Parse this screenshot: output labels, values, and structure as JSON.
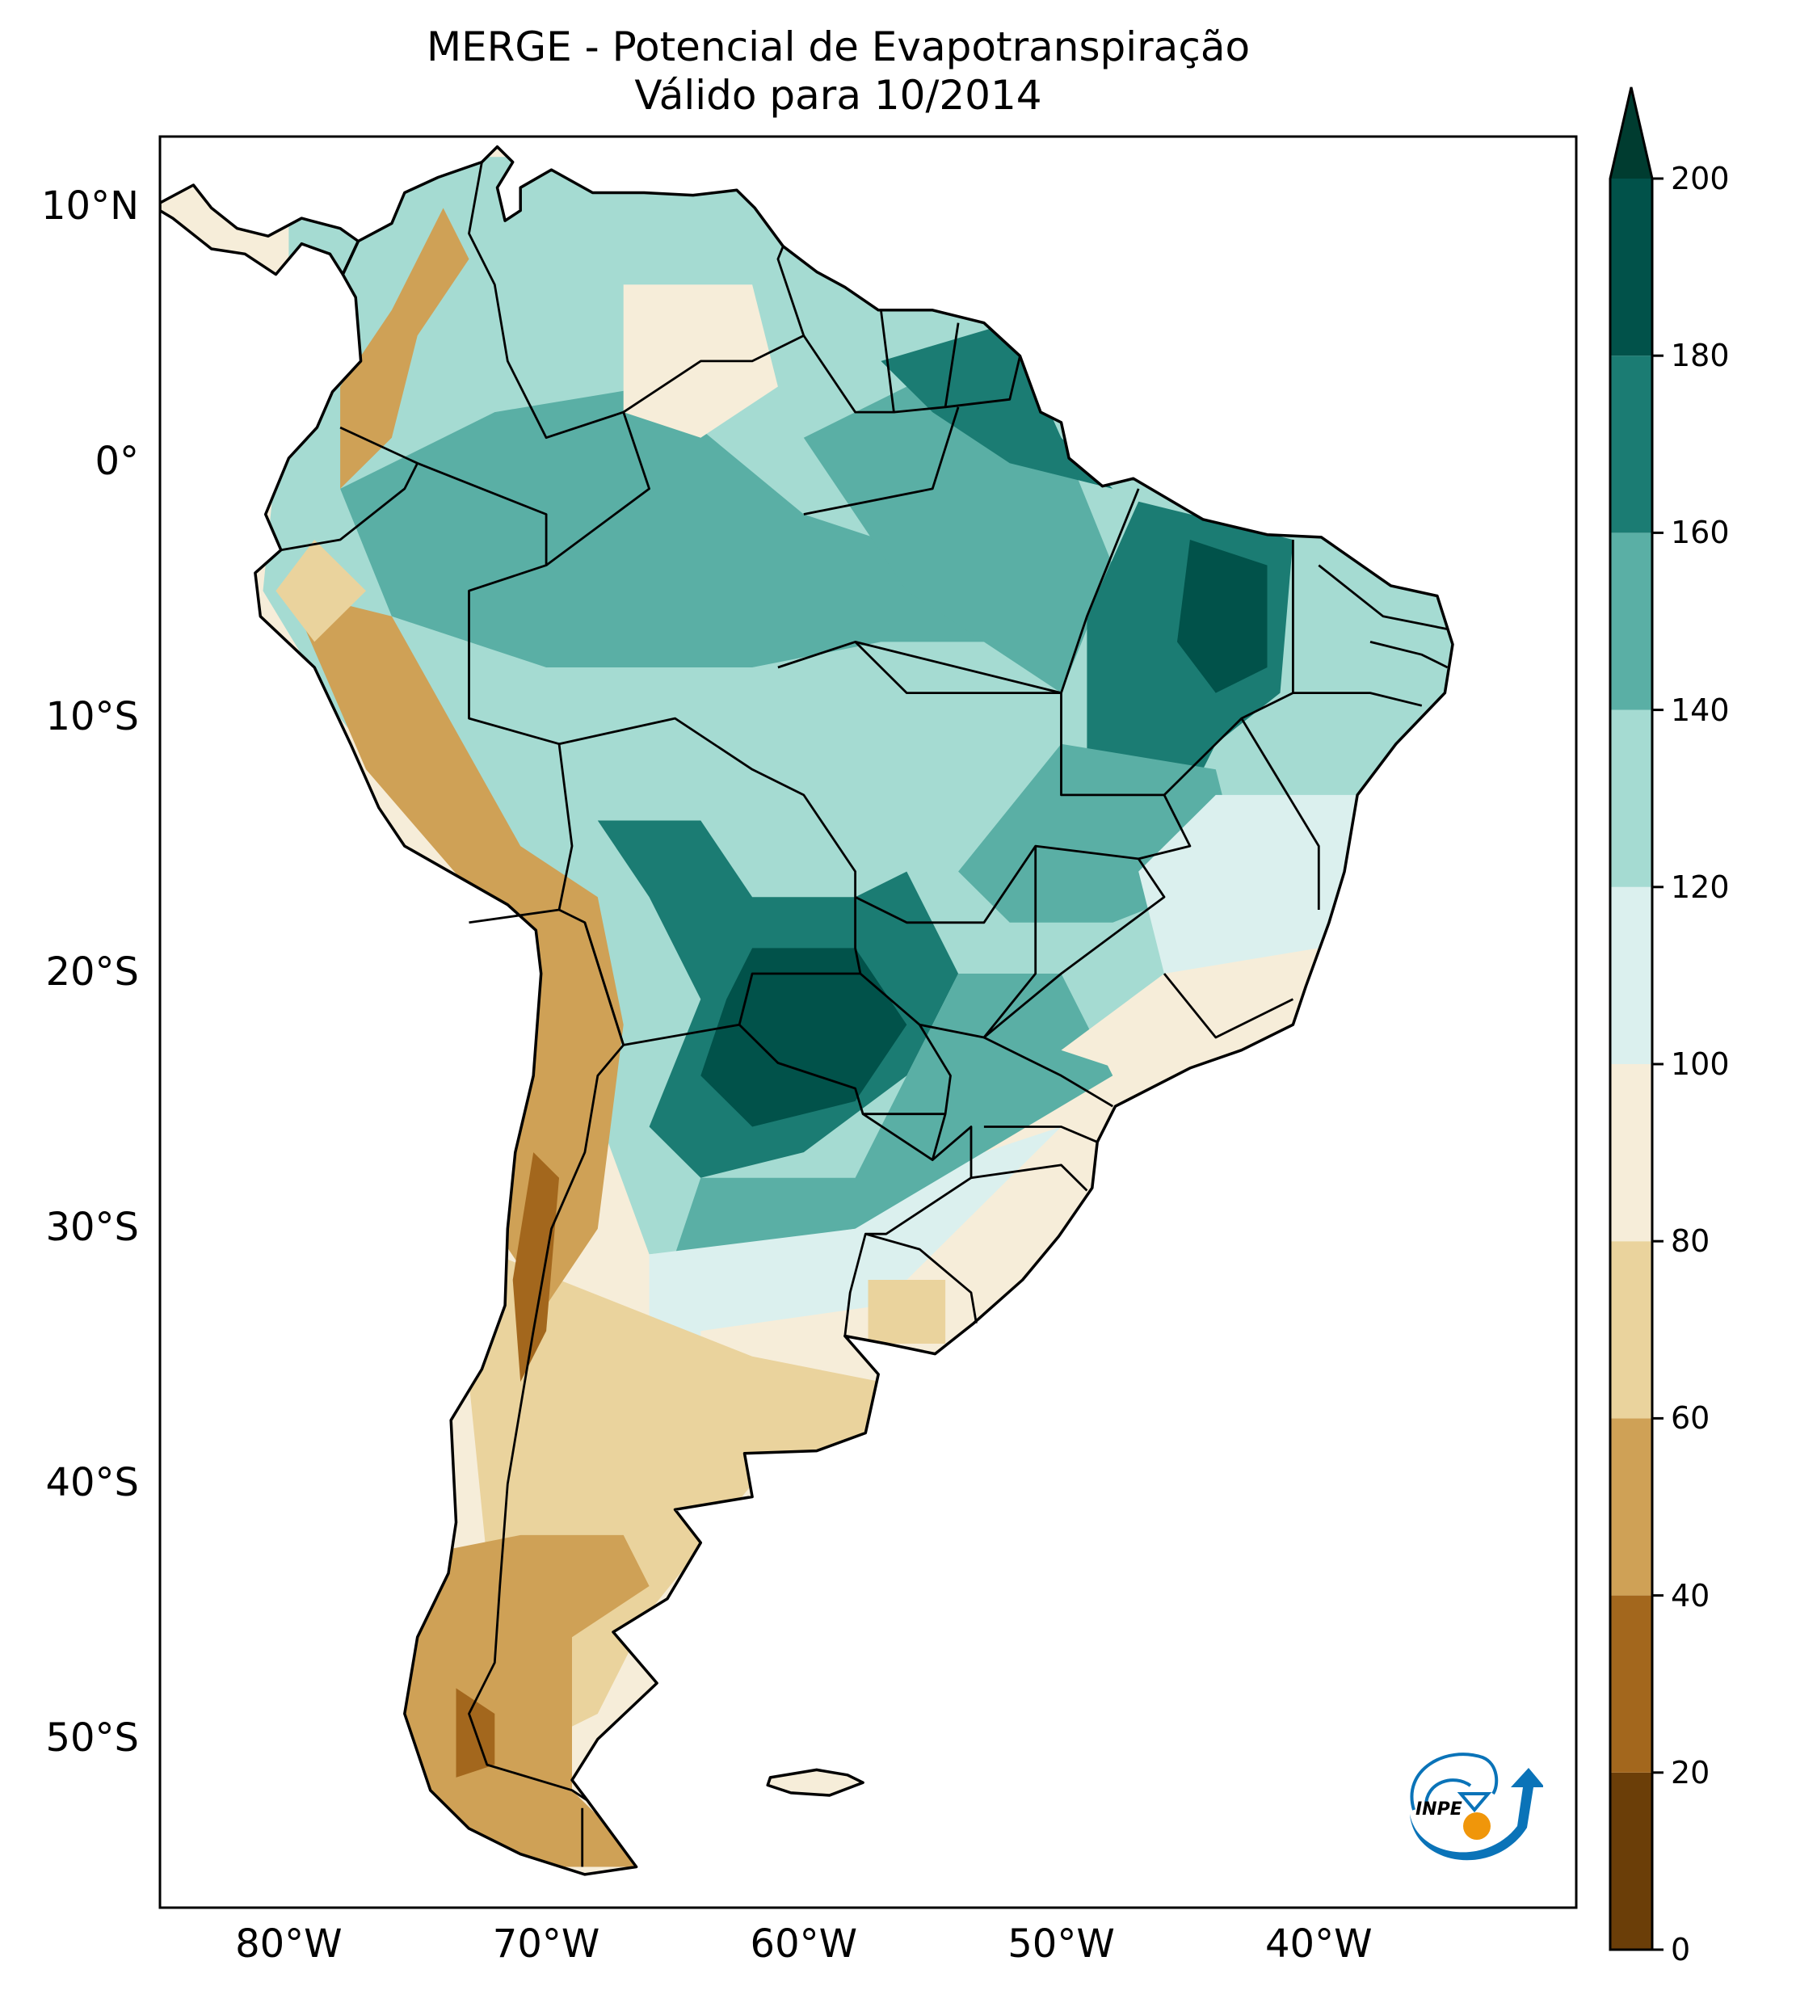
{
  "chart_data": {
    "type": "heatmap",
    "title": "MERGE - Potencial de Evapotranspiração",
    "subtitle": "Válido para 10/2014",
    "region": "South America",
    "xlabel": "",
    "ylabel": "",
    "xlim": [
      -85,
      -30
    ],
    "ylim": [
      -56.6,
      12.8
    ],
    "lat_ticks": [
      {
        "value": 10,
        "label": "10°N"
      },
      {
        "value": 0,
        "label": "0°"
      },
      {
        "value": -10,
        "label": "10°S"
      },
      {
        "value": -20,
        "label": "20°S"
      },
      {
        "value": -30,
        "label": "30°S"
      },
      {
        "value": -40,
        "label": "40°S"
      },
      {
        "value": -50,
        "label": "50°S"
      }
    ],
    "lon_ticks": [
      {
        "value": -80,
        "label": "80°W"
      },
      {
        "value": -70,
        "label": "70°W"
      },
      {
        "value": -60,
        "label": "60°W"
      },
      {
        "value": -50,
        "label": "50°W"
      },
      {
        "value": -40,
        "label": "40°W"
      }
    ],
    "colorbar": {
      "min": 0,
      "max": 200,
      "extend": "max",
      "ticks": [
        0,
        20,
        40,
        60,
        80,
        100,
        120,
        140,
        160,
        180,
        200
      ],
      "tick_labels": [
        "0",
        "20",
        "40",
        "60",
        "80",
        "100",
        "120",
        "140",
        "160",
        "180",
        "200"
      ],
      "levels": [
        {
          "from": 0,
          "to": 20,
          "color": "#6b3e08"
        },
        {
          "from": 20,
          "to": 40,
          "color": "#a3671d"
        },
        {
          "from": 40,
          "to": 60,
          "color": "#cfa156"
        },
        {
          "from": 60,
          "to": 80,
          "color": "#ead39d"
        },
        {
          "from": 80,
          "to": 100,
          "color": "#f6edd9"
        },
        {
          "from": 100,
          "to": 120,
          "color": "#dbf0ee"
        },
        {
          "from": 120,
          "to": 140,
          "color": "#a5dbd2"
        },
        {
          "from": 140,
          "to": 160,
          "color": "#5aafa5"
        },
        {
          "from": 160,
          "to": 180,
          "color": "#1b7c73"
        },
        {
          "from": 180,
          "to": 200,
          "color": "#01524a"
        }
      ],
      "over_color": "#003c30"
    },
    "grid": false,
    "legend": "right"
  },
  "logo": {
    "text": "INPE",
    "icon": "inpe-logo-icon",
    "blue": "#0a73b8",
    "orange": "#f0960a"
  }
}
